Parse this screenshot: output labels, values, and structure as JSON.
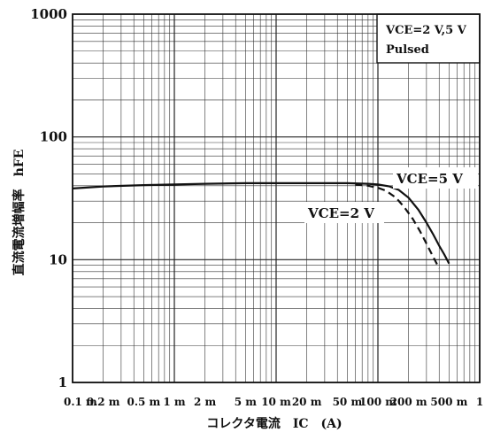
{
  "chart_data": {
    "type": "line",
    "xscale": "log",
    "yscale": "log",
    "xlim": [
      0.1,
      1000
    ],
    "ylim": [
      1,
      1000
    ],
    "x_unit": "mA",
    "ylabel": "直流電流増幅率　hFE",
    "xlabel": "コレクタ電流　IC　(A)",
    "y_ticks": [
      "1000",
      "100",
      "10",
      "1"
    ],
    "y_tick_values": [
      1000,
      100,
      10,
      1
    ],
    "x_ticks": [
      "0.1 m",
      "0.2 m",
      "0.5 m",
      "1 m",
      "2 m",
      "5 m",
      "10 m",
      "20 m",
      "50 m",
      "100 m",
      "200 m",
      "500 m",
      "1"
    ],
    "x_tick_values": [
      0.1,
      0.2,
      0.5,
      1,
      2,
      5,
      10,
      20,
      50,
      100,
      200,
      500,
      1000
    ],
    "grid": "on",
    "legend_box": {
      "line1": "VCE=2 V,5 V",
      "line2": "Pulsed"
    },
    "series": [
      {
        "name": "VCE=5 V",
        "style": "solid",
        "x": [
          0.1,
          0.2,
          0.5,
          1,
          2,
          5,
          10,
          20,
          50,
          80,
          100,
          130,
          160,
          200,
          250,
          300,
          350,
          400,
          450,
          500
        ],
        "y": [
          38,
          39.5,
          40.5,
          41,
          41.5,
          42,
          42,
          42,
          42,
          41.5,
          41,
          39.5,
          37,
          32,
          25.5,
          20,
          16,
          13,
          11,
          9.3
        ]
      },
      {
        "name": "VCE=2 V",
        "style": "dashed",
        "x": [
          60,
          80,
          100,
          120,
          150,
          180,
          220,
          260,
          300,
          350,
          400
        ],
        "y": [
          41,
          40,
          38.5,
          36.5,
          32,
          27,
          21.5,
          17,
          13.5,
          10.5,
          8.5
        ]
      }
    ],
    "annotations": [
      {
        "text": "VCE=5 V",
        "near_series": "VCE=5 V"
      },
      {
        "text": "VCE=2 V",
        "near_series": "VCE=2 V"
      }
    ]
  }
}
